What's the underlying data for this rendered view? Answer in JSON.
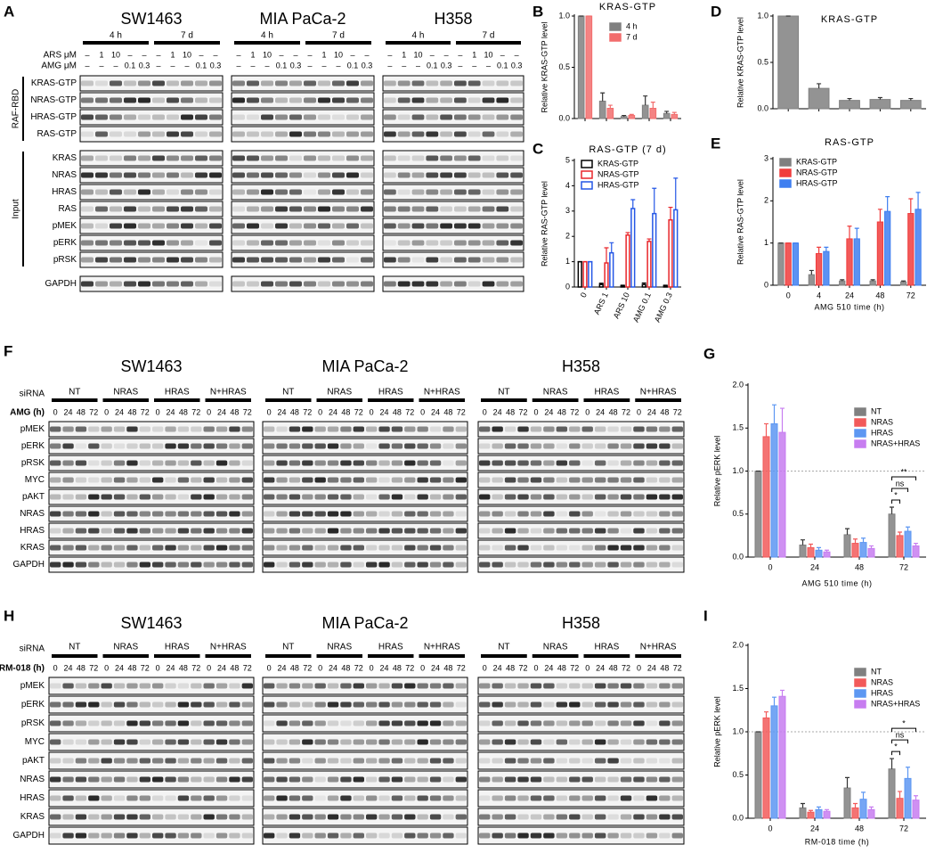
{
  "blots": {
    "A": {
      "panel": "A",
      "cell_lines": [
        "SW1463",
        "MIA PaCa-2",
        "H358"
      ],
      "groups": [
        "4 h",
        "7 d"
      ],
      "treatments": [
        {
          "label": "ARS μM",
          "lanes": [
            "–",
            "1",
            "10",
            "–",
            "–"
          ]
        },
        {
          "label": "AMG μM",
          "lanes": [
            "–",
            "–",
            "–",
            "0.1",
            "0.3"
          ]
        }
      ],
      "row_groups": [
        {
          "label": "RAF-RBD",
          "rows": [
            "KRAS-GTP",
            "NRAS-GTP",
            "HRAS-GTP",
            "RAS-GTP"
          ]
        },
        {
          "label": "Input",
          "rows": [
            "KRAS",
            "NRAS",
            "HRAS",
            "RAS",
            "pMEK",
            "pERK",
            "pRSK"
          ]
        },
        {
          "rows": [
            "GAPDH"
          ]
        }
      ]
    },
    "F": {
      "panel": "F",
      "cell_lines": [
        "SW1463",
        "MIA PaCa-2",
        "H358"
      ],
      "group_label": "siRNA",
      "groups": [
        "NT",
        "NRAS",
        "HRAS",
        "N+HRAS"
      ],
      "treatments": [
        {
          "label": "AMG (h)",
          "lanes": [
            "0",
            "24",
            "48",
            "72"
          ]
        }
      ],
      "row_groups": [
        {
          "rows": [
            "pMEK",
            "pERK",
            "pRSK",
            "MYC",
            "pAKT",
            "NRAS",
            "HRAS",
            "KRAS",
            "GAPDH"
          ]
        }
      ]
    },
    "H": {
      "panel": "H",
      "cell_lines": [
        "SW1463",
        "MIA PaCa-2",
        "H358"
      ],
      "group_label": "siRNA",
      "groups": [
        "NT",
        "NRAS",
        "HRAS",
        "N+HRAS"
      ],
      "treatments": [
        {
          "label": "RM-018 (h)",
          "lanes": [
            "0",
            "24",
            "48",
            "72"
          ]
        }
      ],
      "row_groups": [
        {
          "rows": [
            "pMEK",
            "pERK",
            "pRSK",
            "MYC",
            "pAKT",
            "NRAS",
            "HRAS",
            "KRAS",
            "GAPDH"
          ]
        }
      ]
    }
  },
  "chart_data": [
    {
      "type": "bar",
      "panel": "B",
      "title": "KRAS-GTP",
      "y_label": "Relative KRAS-GTP level",
      "bar_style": "filled",
      "categories": [
        null,
        null,
        null,
        null,
        null
      ],
      "series": [
        {
          "name": "4 h",
          "color": "#808080",
          "values": [
            1,
            0.17,
            0.02,
            0.13,
            0.05
          ],
          "errors": [
            0,
            0.08,
            0.01,
            0.09,
            0.02
          ]
        },
        {
          "name": "7 d",
          "color": "#f26d6d",
          "values": [
            1,
            0.1,
            0.03,
            0.1,
            0.04
          ],
          "errors": [
            0,
            0.03,
            0.01,
            0.06,
            0.02
          ]
        }
      ],
      "ylim": [
        0,
        1
      ],
      "yticks": [
        {
          "value": 0,
          "label": "0.0"
        },
        {
          "value": 0.5,
          "label": "0.5"
        },
        {
          "value": 1,
          "label": "1.0"
        }
      ],
      "legend": "upper right"
    },
    {
      "type": "bar",
      "panel": "C",
      "title": "RAS-GTP (7 d)",
      "y_label": "Relative RAS-GTP level",
      "bar_style": "outline",
      "categories": [
        "0",
        "ARS 1",
        "ARS 10",
        "AMG 0.1",
        "AMG 0.3"
      ],
      "series": [
        {
          "name": "KRAS-GTP",
          "color": "#000000",
          "values": [
            1,
            0.1,
            0.05,
            0.1,
            0.05
          ],
          "errors": [
            0,
            0.05,
            0.02,
            0.06,
            0.02
          ]
        },
        {
          "name": "NRAS-GTP",
          "color": "#e8262b",
          "values": [
            1,
            0.95,
            2.05,
            1.8,
            2.65
          ],
          "errors": [
            0,
            0.6,
            0.1,
            0.1,
            0.5
          ]
        },
        {
          "name": "HRAS-GTP",
          "color": "#2457e6",
          "values": [
            1,
            1.35,
            3.1,
            2.9,
            3.05
          ],
          "errors": [
            0,
            0.4,
            0.35,
            1,
            1.25
          ]
        }
      ],
      "ylim": [
        0,
        5
      ],
      "yticks": [
        0,
        1,
        2,
        3,
        4,
        5
      ],
      "legend": "upper left"
    },
    {
      "type": "bar",
      "panel": "D",
      "title": "KRAS-GTP",
      "y_label": "Relative KRAS-GTP level",
      "bar_style": "filled",
      "categories": [
        null,
        null,
        null,
        null,
        null
      ],
      "series": [
        {
          "color": "#808080",
          "values": [
            1,
            0.22,
            0.09,
            0.1,
            0.09
          ],
          "errors": [
            0,
            0.05,
            0.02,
            0.02,
            0.02
          ]
        }
      ],
      "ylim": [
        0,
        1
      ],
      "yticks": [
        {
          "value": 0,
          "label": "0.0"
        },
        {
          "value": 0.5,
          "label": "0.5"
        },
        {
          "value": 1,
          "label": "1.0"
        }
      ]
    },
    {
      "type": "bar",
      "panel": "E",
      "title": "RAS-GTP",
      "y_label": "Relative RAS-GTP level",
      "x_label": "AMG 510 time (h)",
      "bar_style": "filled",
      "categories": [
        "0",
        "4",
        "24",
        "48",
        "72"
      ],
      "series": [
        {
          "name": "KRAS-GTP",
          "color": "#808080",
          "values": [
            1,
            0.25,
            0.1,
            0.1,
            0.08
          ],
          "errors": [
            0,
            0.1,
            0.03,
            0.03,
            0.02
          ]
        },
        {
          "name": "NRAS-GTP",
          "color": "#f03c3c",
          "values": [
            1,
            0.75,
            1.1,
            1.5,
            1.7
          ],
          "errors": [
            0,
            0.15,
            0.3,
            0.3,
            0.35
          ]
        },
        {
          "name": "HRAS-GTP",
          "color": "#3f7ff0",
          "values": [
            1,
            0.8,
            1.1,
            1.75,
            1.8
          ],
          "errors": [
            0,
            0.1,
            0.25,
            0.35,
            0.4
          ]
        }
      ],
      "ylim": [
        0,
        3
      ],
      "yticks": [
        0,
        1,
        2,
        3
      ],
      "legend": "upper left"
    },
    {
      "type": "bar",
      "panel": "G",
      "y_label": "Relative pERK level",
      "x_label": "AMG 510 time (h)",
      "bar_style": "filled",
      "categories": [
        "0",
        "24",
        "48",
        "72"
      ],
      "series": [
        {
          "name": "NT",
          "color": "#808080",
          "values": [
            1,
            0.14,
            0.26,
            0.5
          ],
          "errors": [
            0,
            0.06,
            0.07,
            0.08
          ]
        },
        {
          "name": "NRAS",
          "color": "#f25a5a",
          "values": [
            1.4,
            0.11,
            0.16,
            0.25
          ],
          "errors": [
            0.15,
            0.04,
            0.05,
            0.04
          ]
        },
        {
          "name": "HRAS",
          "color": "#5d97f2",
          "values": [
            1.55,
            0.08,
            0.17,
            0.3
          ],
          "errors": [
            0.22,
            0.03,
            0.05,
            0.05
          ]
        },
        {
          "name": "NRAS+HRAS",
          "color": "#c77df0",
          "values": [
            1.45,
            0.06,
            0.1,
            0.13
          ],
          "errors": [
            0.28,
            0.02,
            0.03,
            0.03
          ]
        }
      ],
      "ylim": [
        0,
        2
      ],
      "yticks": [
        {
          "value": 0,
          "label": "0.0"
        },
        {
          "value": 0.5,
          "label": "0.5"
        },
        {
          "value": 1,
          "label": "1.0"
        },
        {
          "value": 1.5,
          "label": "1.5"
        },
        {
          "value": 2,
          "label": "2.0"
        }
      ],
      "reference_line": 1,
      "annotations": [
        "**",
        "ns",
        "*"
      ],
      "legend": "upper right"
    },
    {
      "type": "bar",
      "panel": "I",
      "y_label": "Relative pERK level",
      "x_label": "RM-018 time (h)",
      "bar_style": "filled",
      "categories": [
        "0",
        "24",
        "48",
        "72"
      ],
      "series": [
        {
          "name": "NT",
          "color": "#808080",
          "values": [
            1,
            0.12,
            0.35,
            0.57
          ],
          "errors": [
            0,
            0.05,
            0.12,
            0.12
          ]
        },
        {
          "name": "NRAS",
          "color": "#f25a5a",
          "values": [
            1.16,
            0.07,
            0.12,
            0.23
          ],
          "errors": [
            0.07,
            0.02,
            0.05,
            0.08
          ]
        },
        {
          "name": "HRAS",
          "color": "#5d97f2",
          "values": [
            1.3,
            0.1,
            0.22,
            0.46
          ],
          "errors": [
            0.1,
            0.03,
            0.08,
            0.13
          ]
        },
        {
          "name": "NRAS+HRAS",
          "color": "#c77df0",
          "values": [
            1.41,
            0.08,
            0.1,
            0.21
          ],
          "errors": [
            0.07,
            0.02,
            0.03,
            0.05
          ]
        }
      ],
      "ylim": [
        0,
        2
      ],
      "yticks": [
        {
          "value": 0,
          "label": "0.0"
        },
        {
          "value": 0.5,
          "label": "0.5"
        },
        {
          "value": 1,
          "label": "1.0"
        },
        {
          "value": 1.5,
          "label": "1.5"
        },
        {
          "value": 2,
          "label": "2.0"
        }
      ],
      "reference_line": 1,
      "annotations": [
        "*",
        "ns",
        "*"
      ],
      "legend": "upper right"
    }
  ]
}
